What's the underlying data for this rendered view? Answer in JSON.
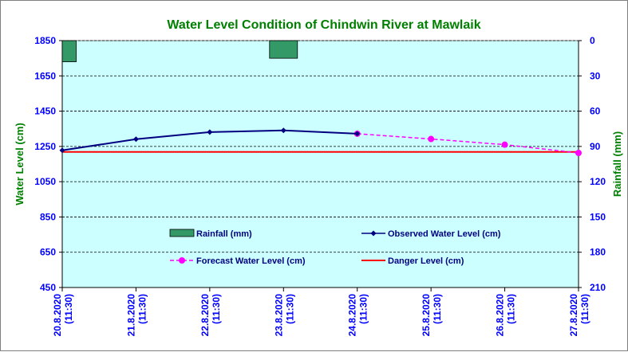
{
  "chart_data": {
    "type": "line",
    "title": "Water Level Condition  of Chindwin River at  Mawlaik",
    "ylabel": "Water Level (cm)",
    "y2label": "Rainfall (mm)",
    "ylim": [
      450,
      1850
    ],
    "y2lim": [
      0,
      210
    ],
    "y2_inverted": true,
    "yticks": [
      "1850",
      "1650",
      "1450",
      "1250",
      "1050",
      "850",
      "650",
      "450"
    ],
    "y2ticks": [
      "0",
      "30",
      "60",
      "90",
      "120",
      "150",
      "180",
      "210"
    ],
    "categories": [
      "20.8.2020",
      "21.8.2020",
      "22.8.2020",
      "23.8.2020",
      "24.8.2020",
      "25.8.2020",
      "26.8.2020",
      "27.8.2020"
    ],
    "category_time": "(11:30)",
    "grid": "horizontal dashed",
    "series": [
      {
        "name": "Rainfall (mm)",
        "kind": "bar",
        "axis": "right",
        "color": "#339966",
        "values": [
          18,
          0,
          0,
          15,
          0,
          0,
          0,
          0
        ]
      },
      {
        "name": "Observed Water Level (cm)",
        "kind": "line",
        "marker": "diamond",
        "color": "#000080",
        "values": [
          1228,
          1291,
          1331,
          1341,
          1322,
          null,
          null,
          null
        ]
      },
      {
        "name": "Forecast Water Level (cm)",
        "kind": "line",
        "dashed": true,
        "marker": "circle",
        "color": "#ff00ff",
        "values": [
          null,
          null,
          null,
          null,
          1322,
          1292,
          1260,
          1213
        ]
      },
      {
        "name": "Danger Level (cm)",
        "kind": "line",
        "color": "#ff0000",
        "values": [
          1219,
          1219,
          1219,
          1219,
          1219,
          1219,
          1219,
          1219
        ]
      }
    ],
    "colors": {
      "plot_background": "#ccffff",
      "title": "#008000",
      "axis_text": "#0000ff",
      "axis_title": "#008000"
    }
  }
}
